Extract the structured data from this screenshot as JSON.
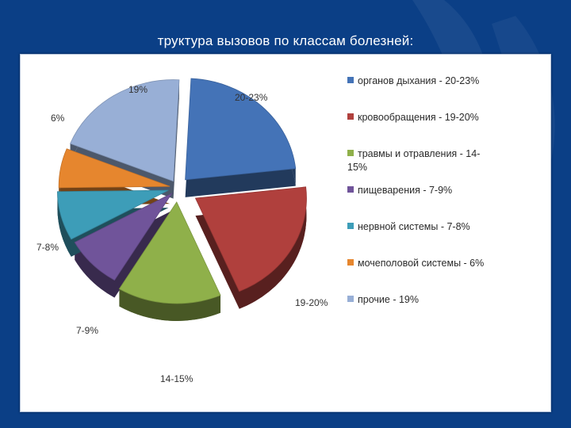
{
  "slide": {
    "title": "труктура вызовов по классам болезней:"
  },
  "chart_data": {
    "type": "pie",
    "title": "",
    "slices": [
      {
        "name": "органов дыхания - 20-23%",
        "label": "20-23%",
        "value": 21.5,
        "color": "#4473b7",
        "legend": [
          "органов дыхания - 20-23%"
        ]
      },
      {
        "name": "кровообращения - 19-20%",
        "label": "19-20%",
        "value": 19.5,
        "color": "#b0403d",
        "legend": [
          "кровообращения - 19-20%"
        ]
      },
      {
        "name": "травмы и отравления - 14-15%",
        "label": "14-15%",
        "value": 14.5,
        "color": "#8fb04a",
        "legend": [
          "травмы и отравления - 14-",
          "15%"
        ]
      },
      {
        "name": "пищеварения - 7-9%",
        "label": "7-9%",
        "value": 8,
        "color": "#70549a",
        "legend": [
          "пищеварения - 7-9%"
        ]
      },
      {
        "name": "нервной системы - 7-8%",
        "label": "7-8%",
        "value": 7.5,
        "color": "#3d9db8",
        "legend": [
          "нервной системы - 7-8%"
        ]
      },
      {
        "name": "мочеполовой системы - 6%",
        "label": "6%",
        "value": 6,
        "color": "#e6862e",
        "legend": [
          "мочеполовой системы - 6%"
        ]
      },
      {
        "name": "прочие - 19%",
        "label": "19%",
        "value": 19,
        "color": "#98afd6",
        "legend": [
          "прочие - 19%"
        ]
      }
    ],
    "legend_position": "right"
  }
}
